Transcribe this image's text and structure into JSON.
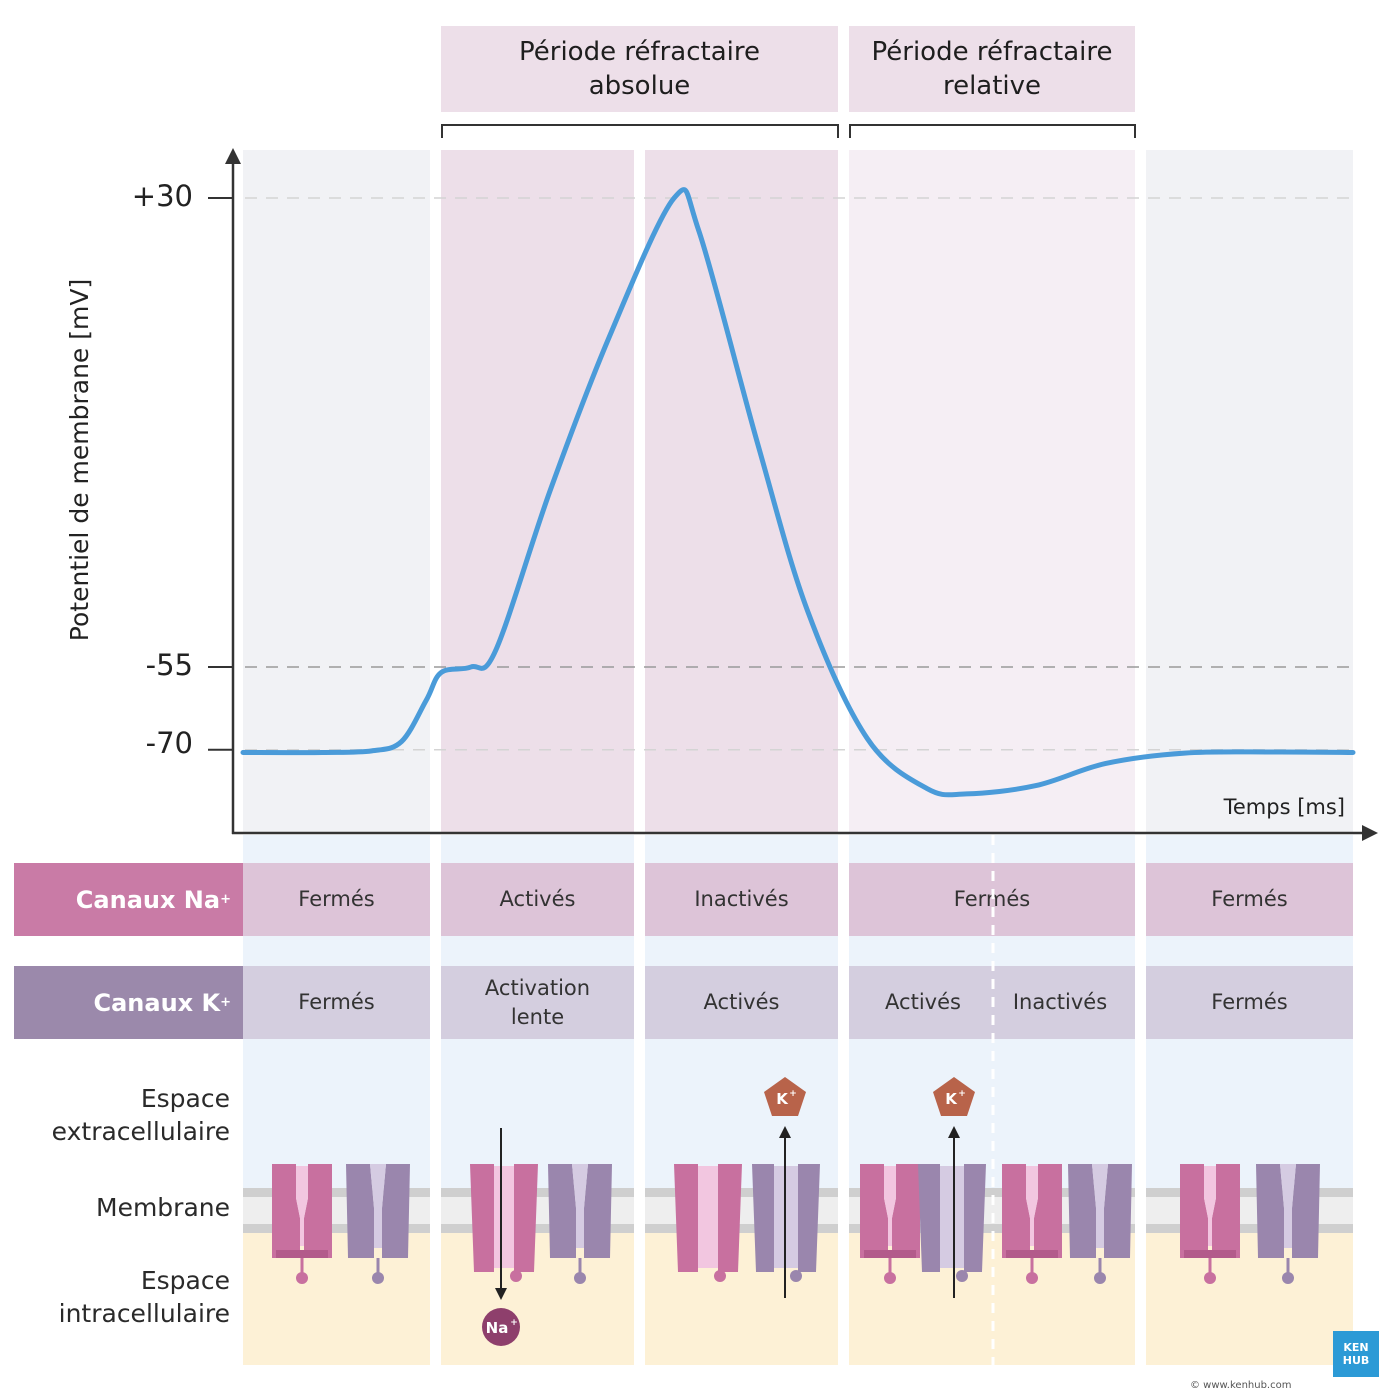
{
  "periods": {
    "absolute_label": "Période réfractaire absolue",
    "relative_label": "Période réfractaire relative"
  },
  "axes": {
    "ylabel": "Potentiel de membrane [mV]",
    "xlabel": "Temps [ms]",
    "yticks": [
      "+30",
      "-55",
      "-70"
    ]
  },
  "rows": {
    "na": {
      "label": "Canaux Na",
      "sup": "+",
      "cells": [
        "Fermés",
        "Activés",
        "Inactivés",
        "Fermés",
        "Fermés"
      ]
    },
    "k": {
      "label": "Canaux K",
      "sup": "+",
      "cells": [
        "Fermés",
        "Activation lente",
        "Activés",
        "Activés",
        "Inactivés",
        "Fermés"
      ]
    }
  },
  "spaces": {
    "extra": "Espace extracellulaire",
    "membrane": "Membrane",
    "intra": "Espace intracellulaire"
  },
  "ions": {
    "na": "Na",
    "k": "K",
    "sup": "+"
  },
  "logo": {
    "line1": "KEN",
    "line2": "HUB"
  },
  "credit": "© www.kenhub.com",
  "colors": {
    "curve": "#4a9bd9",
    "na_channel": "#c8709f",
    "k_channel": "#9a86ad",
    "na_row": "#c97ba6",
    "k_row": "#9b89ab",
    "k_ion": "#b8634a",
    "na_ion": "#8e3f6c"
  },
  "chart_data": {
    "type": "line",
    "xlabel": "Temps [ms]",
    "ylabel": "Potentiel de membrane [mV]",
    "ylim": [
      -77,
      34
    ],
    "yticks": [
      30,
      -55,
      -70
    ],
    "x_units": "relative time",
    "series": [
      {
        "points": [
          [
            0,
            -70.5
          ],
          [
            0.8,
            -70.5
          ],
          [
            1.3,
            -70.2
          ],
          [
            1.6,
            -68.5
          ],
          [
            1.85,
            -61
          ],
          [
            2.0,
            -56
          ],
          [
            2.3,
            -55
          ],
          [
            2.55,
            -52
          ],
          [
            3.1,
            -23
          ],
          [
            3.7,
            5
          ],
          [
            4.35,
            30
          ],
          [
            4.6,
            24
          ],
          [
            5.2,
            -15
          ],
          [
            5.7,
            -45
          ],
          [
            6.3,
            -68
          ],
          [
            6.9,
            -77
          ],
          [
            7.3,
            -78
          ],
          [
            8.0,
            -76.5
          ],
          [
            8.7,
            -72.5
          ],
          [
            9.5,
            -70.6
          ],
          [
            10.4,
            -70.4
          ],
          [
            11.2,
            -70.5
          ]
        ]
      }
    ]
  }
}
